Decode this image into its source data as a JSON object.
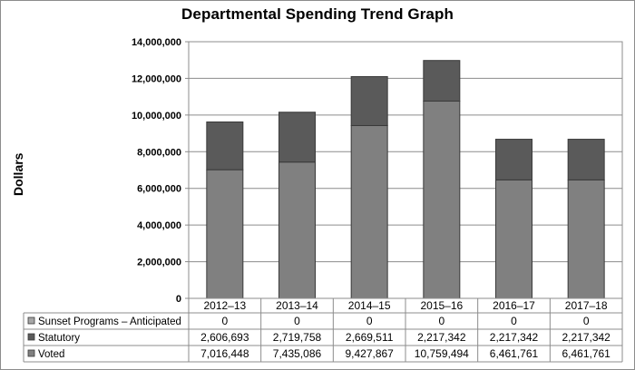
{
  "chart_data": {
    "type": "bar",
    "stacked": true,
    "title": "Departmental Spending Trend Graph",
    "ylabel": "Dollars",
    "xlabel": "",
    "ylim": [
      0,
      14000000
    ],
    "yticks": [
      0,
      2000000,
      4000000,
      6000000,
      8000000,
      10000000,
      12000000,
      14000000
    ],
    "ytick_labels": [
      "0",
      "2,000,000",
      "4,000,000",
      "6,000,000",
      "8,000,000",
      "10,000,000",
      "12,000,000",
      "14,000,000"
    ],
    "categories": [
      "2012–13",
      "2013–14",
      "2014–15",
      "2015–16",
      "2016–17",
      "2017–18"
    ],
    "grid": true,
    "legend": "data-table",
    "series": [
      {
        "name": "Voted",
        "values": [
          7016448,
          7435086,
          9427867,
          10759494,
          6461761,
          6461761
        ],
        "labels": [
          "7,016,448",
          "7,435,086",
          "9,427,867",
          "10,759,494",
          "6,461,761",
          "6,461,761"
        ],
        "color": "#808080"
      },
      {
        "name": "Statutory",
        "values": [
          2606693,
          2719758,
          2669511,
          2217342,
          2217342,
          2217342
        ],
        "labels": [
          "2,606,693",
          "2,719,758",
          "2,669,511",
          "2,217,342",
          "2,217,342",
          "2,217,342"
        ],
        "color": "#5a5a5a"
      },
      {
        "name": "Sunset Programs – Anticipated",
        "values": [
          0,
          0,
          0,
          0,
          0,
          0
        ],
        "labels": [
          "0",
          "0",
          "0",
          "0",
          "0",
          "0"
        ],
        "color": "#a6a6a6"
      }
    ]
  }
}
